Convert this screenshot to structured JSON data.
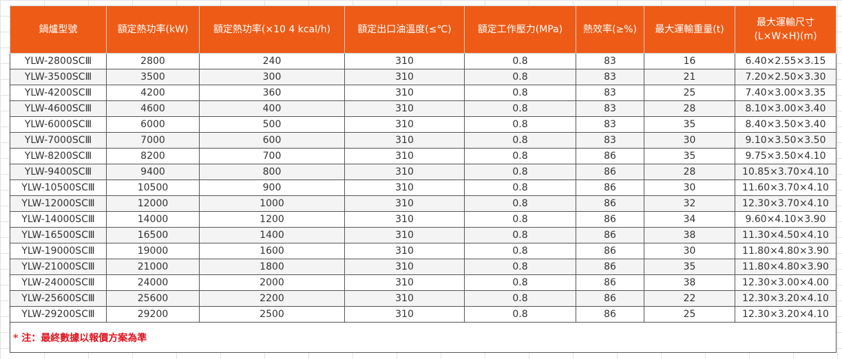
{
  "headers": [
    "鍋爐型號",
    "額定熱功率(kW)",
    "額定熱功率(×10 4 kcal/h)",
    "額定出口油溫度(≤℃)",
    "額定工作壓力(MPa)",
    "熱效率(≥%)",
    "最大運輸重量(t)",
    "最大運輸尺寸\n(L×W×H)(m)"
  ],
  "rows": [
    [
      "YLW-2800SCⅢ",
      "2800",
      "240",
      "310",
      "0.8",
      "83",
      "16",
      "6.40×2.55×3.15"
    ],
    [
      "YLW-3500SCⅢ",
      "3500",
      "300",
      "310",
      "0.8",
      "83",
      "21",
      "7.20×2.50×3.30"
    ],
    [
      "YLW-4200SCⅢ",
      "4200",
      "360",
      "310",
      "0.8",
      "83",
      "25",
      "7.40×3.00×3.35"
    ],
    [
      "YLW-4600SCⅢ",
      "4600",
      "400",
      "310",
      "0.8",
      "83",
      "28",
      "8.10×3.00×3.40"
    ],
    [
      "YLW-6000SCⅢ",
      "6000",
      "500",
      "310",
      "0.8",
      "83",
      "35",
      "8.40×3.50×3.40"
    ],
    [
      "YLW-7000SCⅢ",
      "7000",
      "600",
      "310",
      "0.8",
      "83",
      "30",
      "9.10×3.50×3.50"
    ],
    [
      "YLW-8200SCⅢ",
      "8200",
      "700",
      "310",
      "0.8",
      "86",
      "35",
      "9.75×3.50×4.10"
    ],
    [
      "YLW-9400SCⅢ",
      "9400",
      "800",
      "310",
      "0.8",
      "86",
      "28",
      "10.85×3.70×4.10"
    ],
    [
      "YLW-10500SCⅢ",
      "10500",
      "900",
      "310",
      "0.8",
      "86",
      "30",
      "11.60×3.70×4.10"
    ],
    [
      "YLW-12000SCⅢ",
      "12000",
      "1000",
      "310",
      "0.8",
      "86",
      "32",
      "12.30×3.70×4.10"
    ],
    [
      "YLW-14000SCⅢ",
      "14000",
      "1200",
      "310",
      "0.8",
      "86",
      "34",
      "9.60×4.10×3.90"
    ],
    [
      "YLW-16500SCⅢ",
      "16500",
      "1400",
      "310",
      "0.8",
      "86",
      "38",
      "11.30×4.50×4.10"
    ],
    [
      "YLW-19000SCⅢ",
      "19000",
      "1600",
      "310",
      "0.8",
      "86",
      "30",
      "11.80×4.80×3.90"
    ],
    [
      "YLW-21000SCⅢ",
      "21000",
      "1800",
      "310",
      "0.8",
      "86",
      "35",
      "11.80×4.80×3.90"
    ],
    [
      "YLW-24000SCⅢ",
      "24000",
      "2000",
      "310",
      "0.8",
      "86",
      "38",
      "12.30×3.00×4.00"
    ],
    [
      "YLW-25600SCⅢ",
      "25600",
      "2200",
      "310",
      "0.8",
      "86",
      "22",
      "12.30×3.20×4.10"
    ],
    [
      "YLW-29200SCⅢ",
      "29200",
      "2500",
      "310",
      "0.8",
      "86",
      "25",
      "12.30×3.20×4.10"
    ]
  ],
  "note": "* 注：最終數據以報價方案為準",
  "colors": {
    "header_bg": "#ee5b16",
    "header_text": "#ffffff",
    "note_text": "#e0141e"
  }
}
